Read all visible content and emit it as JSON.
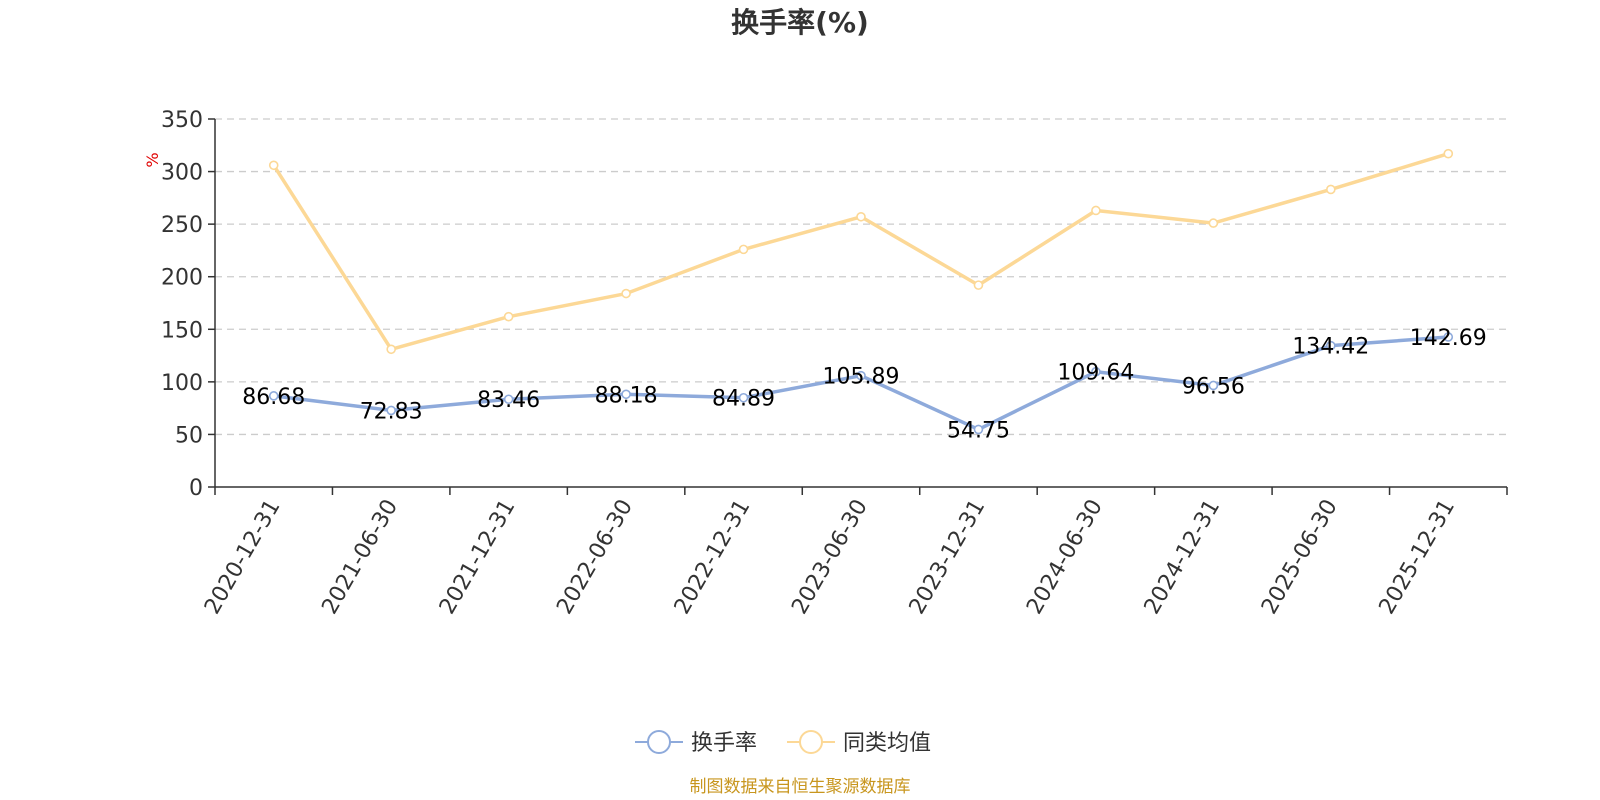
{
  "chart_data": {
    "type": "line",
    "title": "换手率(%)",
    "ylabel": "%",
    "ylim": [
      0,
      350
    ],
    "yticks": [
      0,
      50,
      100,
      150,
      200,
      250,
      300,
      350
    ],
    "grid": true,
    "categories": [
      "2020-12-31",
      "2021-06-30",
      "2021-12-31",
      "2022-06-30",
      "2022-12-31",
      "2023-06-30",
      "2023-12-31",
      "2024-06-30",
      "2024-12-31",
      "2025-06-30",
      "2025-12-31"
    ],
    "series": [
      {
        "name": "换手率",
        "color": "#8eaadb",
        "values": [
          86.68,
          72.83,
          83.46,
          88.18,
          84.89,
          105.89,
          54.75,
          109.64,
          96.56,
          134.42,
          142.69
        ],
        "labels": [
          "86.68",
          "72.83",
          "83.46",
          "88.18",
          "84.89",
          "105.89",
          "54.75",
          "109.64",
          "96.56",
          "134.42",
          "142.69"
        ]
      },
      {
        "name": "同类均值",
        "color": "#fcd896",
        "values": [
          306,
          131,
          162,
          184,
          226,
          257,
          192,
          263,
          251,
          283,
          317
        ]
      }
    ],
    "legend_position": "bottom-center",
    "source": "制图数据来自恒生聚源数据库",
    "source_color": "#c8961e",
    "unit_color": "#e00000"
  }
}
